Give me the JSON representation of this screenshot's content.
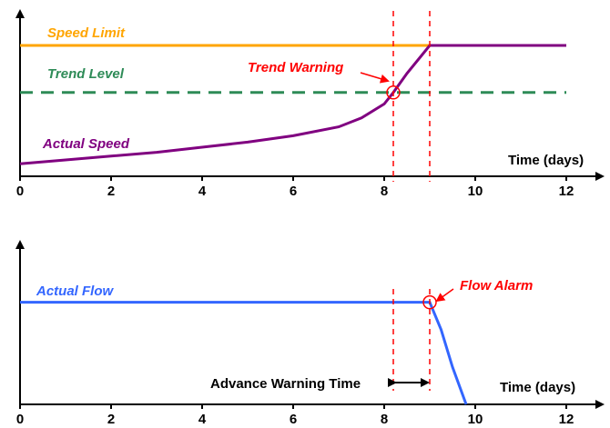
{
  "chart_data": [
    {
      "type": "line",
      "xlabel": "Time (days)",
      "ylabel": "",
      "xlim": [
        0,
        12
      ],
      "xticks": [
        "0",
        "2",
        "4",
        "6",
        "8",
        "10",
        "12"
      ],
      "grid": false,
      "colors": {
        "limit": "#FFA500",
        "trend": "#2E8B57",
        "actual": "#800080",
        "markers": "#FF0000"
      },
      "series": [
        {
          "name": "Speed Limit",
          "style": "solid",
          "x": [
            0,
            12
          ],
          "y": [
            1.0,
            1.0
          ]
        },
        {
          "name": "Trend Level",
          "style": "dashed",
          "x": [
            0,
            12
          ],
          "y": [
            0.63,
            0.63
          ]
        },
        {
          "name": "Actual Speed",
          "style": "solid",
          "x": [
            0,
            1,
            2,
            3,
            4,
            5,
            6,
            7,
            7.5,
            8,
            8.2,
            8.5,
            9,
            12
          ],
          "y": [
            0.07,
            0.1,
            0.13,
            0.16,
            0.2,
            0.24,
            0.29,
            0.36,
            0.43,
            0.54,
            0.63,
            0.78,
            1.0,
            1.0
          ]
        }
      ],
      "annotations": [
        {
          "text": "Trend Warning",
          "x": 8.2,
          "y": 0.63,
          "kind": "circle"
        }
      ],
      "vlines": [
        8.2,
        9.0
      ]
    },
    {
      "type": "line",
      "xlabel": "Time (days)",
      "ylabel": "",
      "xlim": [
        0,
        12
      ],
      "xticks": [
        "0",
        "2",
        "4",
        "6",
        "8",
        "10",
        "12"
      ],
      "grid": false,
      "colors": {
        "flow": "#3366FF",
        "markers": "#FF0000"
      },
      "series": [
        {
          "name": "Actual Flow",
          "style": "solid",
          "x": [
            0,
            9.0,
            9.25,
            9.5,
            9.8
          ],
          "y": [
            0.82,
            0.82,
            0.6,
            0.3,
            0.0
          ]
        }
      ],
      "annotations": [
        {
          "text": "Flow Alarm",
          "x": 9.0,
          "y": 0.82,
          "kind": "circle"
        }
      ],
      "span": {
        "text": "Advance Warning Time",
        "from": 8.2,
        "to": 9.0
      },
      "vlines": [
        8.2,
        9.0
      ]
    }
  ]
}
